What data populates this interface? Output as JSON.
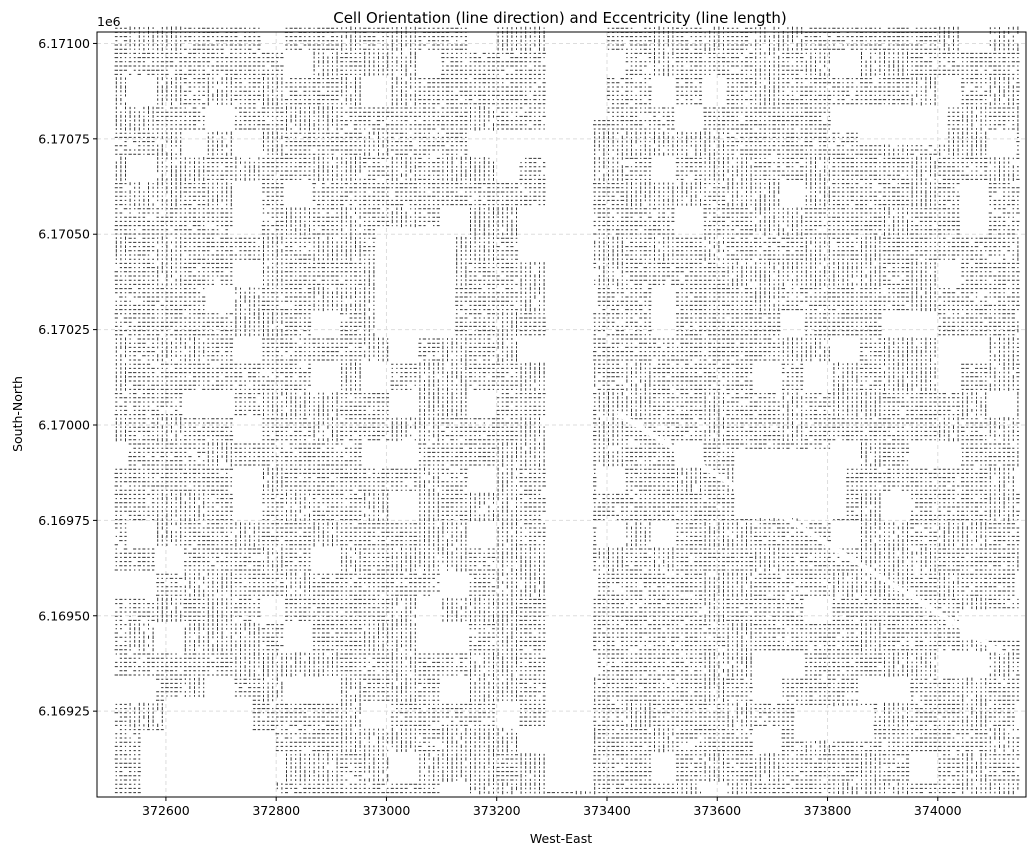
{
  "chart_data": {
    "type": "quiver",
    "title": "Cell Orientation (line direction) and Eccentricity (line length)",
    "xlabel": "West-East",
    "ylabel": "South-North",
    "offset_label": "1e6",
    "xlim": [
      372475,
      374160
    ],
    "ylim": [
      6169025,
      6171030
    ],
    "x_ticks": [
      372600,
      372800,
      373000,
      373200,
      373400,
      373600,
      373800,
      374000
    ],
    "x_tick_labels": [
      "372600",
      "372800",
      "373000",
      "373200",
      "373400",
      "373600",
      "373800",
      "374000"
    ],
    "y_ticks": [
      6169250,
      6169500,
      6169750,
      6170000,
      6170250,
      6170500,
      6170750,
      6171000
    ],
    "y_tick_labels": [
      "6.16925",
      "6.16950",
      "6.16975",
      "6.17000",
      "6.17025",
      "6.17050",
      "6.17075",
      "6.17100"
    ],
    "grid": true,
    "grid_style": "dashed",
    "line_color": "#333333",
    "data_extent": {
      "x": [
        372510,
        374150
      ],
      "y": [
        6169030,
        6171040
      ]
    },
    "empty_regions": [
      {
        "x": [
          373290,
          373370
        ],
        "y": [
          6169040,
          6171040
        ]
      },
      {
        "x": [
          373290,
          373400
        ],
        "y": [
          6170800,
          6171040
        ]
      },
      {
        "x": [
          372980,
          373120
        ],
        "y": [
          6170230,
          6170520
        ]
      },
      {
        "x": [
          372560,
          372800
        ],
        "y": [
          6169030,
          6169200
        ]
      },
      {
        "x": [
          372600,
          372760
        ],
        "y": [
          6169200,
          6169280
        ]
      },
      {
        "x": [
          373630,
          373830
        ],
        "y": [
          6169760,
          6169930
        ]
      },
      {
        "x": [
          373860,
          374020
        ],
        "y": [
          6170740,
          6170840
        ]
      },
      {
        "x": [
          374040,
          374150
        ],
        "y": [
          6169440,
          6169520
        ]
      },
      {
        "x": [
          373740,
          373880
        ],
        "y": [
          6169170,
          6169260
        ]
      }
    ],
    "lines": [
      {
        "x0": 373420,
        "y0": 6170030,
        "x1": 374120,
        "y1": 6169400
      }
    ]
  }
}
